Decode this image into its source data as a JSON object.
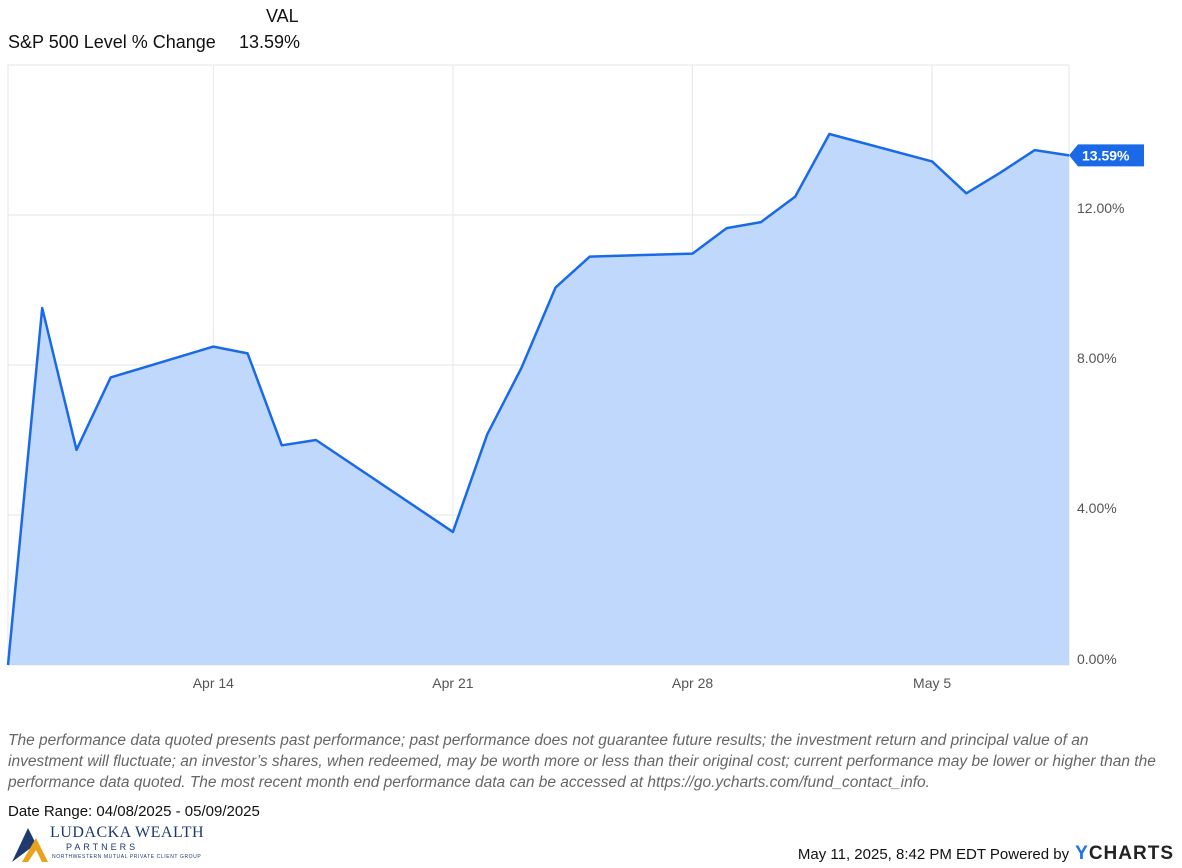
{
  "legend": {
    "column_header": "VAL",
    "series_name": "S&P 500 Level % Change",
    "series_value": "13.59%"
  },
  "chart_data": {
    "type": "area",
    "x_tick_labels": [
      "Apr 14",
      "Apr 21",
      "Apr 28",
      "May 5"
    ],
    "y_tick_labels": [
      "0.00%",
      "4.00%",
      "8.00%",
      "12.00%"
    ],
    "ylim": [
      0,
      16
    ],
    "xlim": [
      "2025-04-08",
      "2025-05-09"
    ],
    "grid": true,
    "last_value_label": "13.59%",
    "series": [
      {
        "name": "S&P 500 Level % Change",
        "color": "#1a6ae8",
        "fill": "#c0d8fc",
        "x": [
          "2025-04-08",
          "2025-04-09",
          "2025-04-10",
          "2025-04-11",
          "2025-04-14",
          "2025-04-15",
          "2025-04-16",
          "2025-04-17",
          "2025-04-21",
          "2025-04-22",
          "2025-04-23",
          "2025-04-24",
          "2025-04-25",
          "2025-04-28",
          "2025-04-29",
          "2025-04-30",
          "2025-05-01",
          "2025-05-02",
          "2025-05-05",
          "2025-05-06",
          "2025-05-07",
          "2025-05-08",
          "2025-05-09"
        ],
        "y": [
          0.0,
          9.52,
          5.74,
          7.67,
          8.49,
          8.31,
          5.86,
          6.0,
          3.55,
          6.15,
          7.92,
          10.07,
          10.89,
          10.97,
          11.65,
          11.81,
          12.49,
          14.16,
          13.43,
          12.58,
          13.13,
          13.73,
          13.59
        ]
      }
    ]
  },
  "disclaimer": "The performance data quoted presents past performance; past performance does not guarantee future results; the investment return and principal value of an investment will fluctuate; an investor’s shares, when redeemed, may be worth more or less than their original cost; current performance may be lower or higher than the performance data quoted. The most recent month end performance data can be accessed at https://go.ycharts.com/fund_contact_info.",
  "date_range": "Date Range: 04/08/2025 - 05/09/2025",
  "logo": {
    "name": "LUDACKA WEALTH",
    "sub": "PARTNERS",
    "tag": "NORTHWESTERN MUTUAL PRIVATE CLIENT GROUP"
  },
  "footer": {
    "timestamp": "May 11, 2025, 8:42 PM EDT Powered by",
    "brand_y": "Y",
    "brand_rest": "CHARTS"
  },
  "colors": {
    "accent": "#1a6ae8",
    "area_fill": "#c0d8fc",
    "grid": "#e6e6e6"
  }
}
